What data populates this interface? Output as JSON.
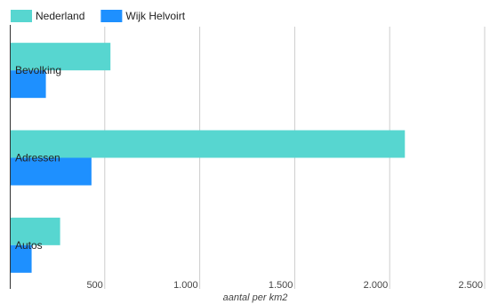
{
  "chart_data": {
    "type": "bar",
    "orientation": "horizontal",
    "categories": [
      "Bevolking",
      "Adressen",
      "Autos"
    ],
    "series": [
      {
        "name": "Nederland",
        "color": "#57d6d0",
        "values": [
          530,
          2080,
          265
        ]
      },
      {
        "name": "Wijk Helvoirt",
        "color": "#1e90ff",
        "values": [
          190,
          430,
          115
        ]
      }
    ],
    "xlabel": "aantal per km2",
    "ylabel": "",
    "xlim": [
      0,
      2500
    ],
    "xticks": [
      500,
      1000,
      1500,
      2000,
      2500
    ],
    "xtick_labels": [
      "500",
      "1.000",
      "1.500",
      "2.000",
      "2.500"
    ],
    "grid": true,
    "legend_position": "top-left"
  }
}
